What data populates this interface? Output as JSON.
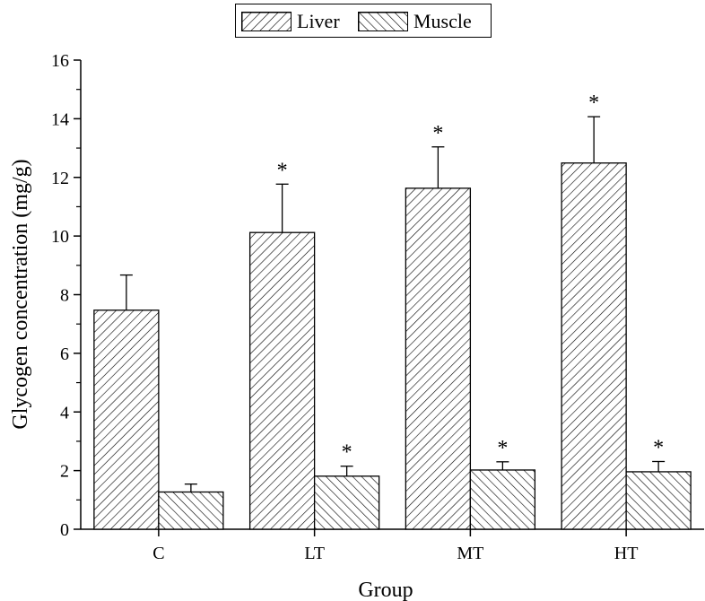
{
  "chart_data": {
    "type": "bar",
    "categories": [
      "C",
      "LT",
      "MT",
      "HT"
    ],
    "series": [
      {
        "name": "Liver",
        "values": [
          7.47,
          10.12,
          11.63,
          12.49
        ],
        "errors": [
          1.2,
          1.65,
          1.41,
          1.58
        ],
        "significance": [
          "",
          "*",
          "*",
          "*"
        ],
        "pattern": "hatch-forward"
      },
      {
        "name": "Muscle",
        "values": [
          1.27,
          1.81,
          2.02,
          1.96
        ],
        "errors": [
          0.27,
          0.34,
          0.28,
          0.35
        ],
        "significance": [
          "",
          "*",
          "*",
          "*"
        ],
        "pattern": "hatch-backward"
      }
    ],
    "xlabel": "Group",
    "ylabel": "Glycogen concentration (mg/g)",
    "ylim": [
      0,
      16
    ],
    "yticks": [
      0,
      2,
      4,
      6,
      8,
      10,
      12,
      14,
      16
    ],
    "grid": false,
    "legend_position": "top-center",
    "colors": {
      "bar_fill": "#ffffff",
      "hatch": "#000000",
      "axis": "#000000"
    }
  }
}
